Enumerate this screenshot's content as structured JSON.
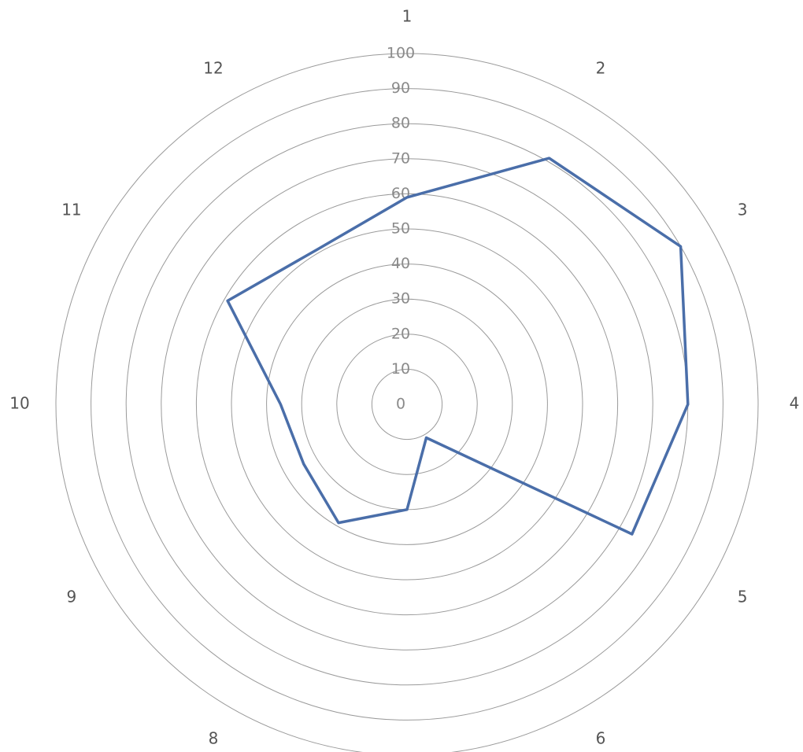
{
  "chart_data": {
    "type": "radar",
    "categories": [
      "1",
      "2",
      "3",
      "4",
      "5",
      "6",
      null,
      "8",
      "9",
      "10",
      "11",
      "12"
    ],
    "series": [
      {
        "color": "#4a6ea9",
        "values": [
          59,
          81,
          90,
          80,
          74,
          11,
          30,
          39,
          34,
          36,
          59,
          51
        ]
      }
    ],
    "ylim": [
      0,
      100
    ],
    "yticks": [
      0,
      10,
      20,
      30,
      40,
      50,
      60,
      70,
      80,
      90,
      100
    ],
    "grid": true
  }
}
